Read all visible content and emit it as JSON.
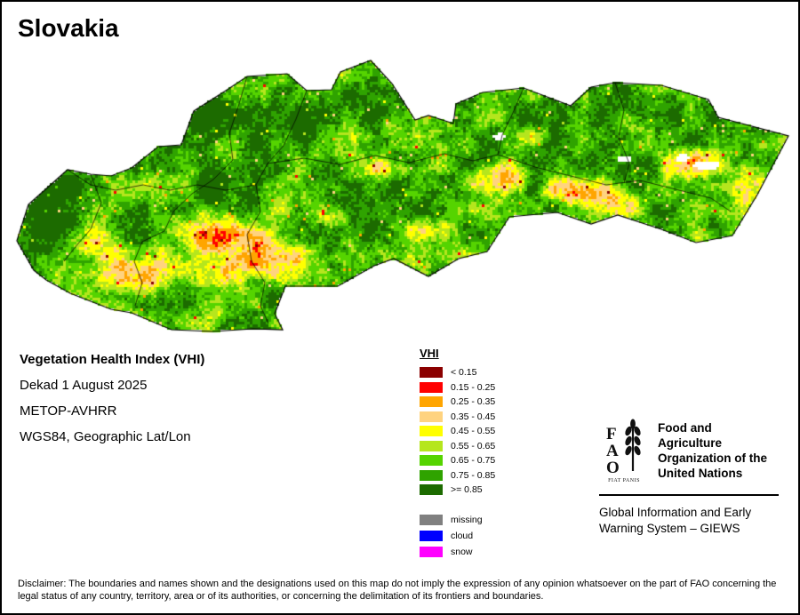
{
  "map": {
    "title": "Slovakia"
  },
  "info": {
    "index_title": "Vegetation Health Index (VHI)",
    "dekad": "Dekad 1 August 2025",
    "sensor": "METOP-AVHRR",
    "projection": "WGS84, Geographic Lat/Lon"
  },
  "legend": {
    "title": "VHI",
    "classes": [
      {
        "label": "< 0.15",
        "color": "#8B0000"
      },
      {
        "label": "0.15 - 0.25",
        "color": "#FF0000"
      },
      {
        "label": "0.25 - 0.35",
        "color": "#FFA500"
      },
      {
        "label": "0.35 - 0.45",
        "color": "#FFD37F"
      },
      {
        "label": "0.45 - 0.55",
        "color": "#FFFF00"
      },
      {
        "label": "0.55 - 0.65",
        "color": "#B5E61D"
      },
      {
        "label": "0.65 - 0.75",
        "color": "#55D400"
      },
      {
        "label": "0.75 - 0.85",
        "color": "#2FA300"
      },
      {
        "label": ">= 0.85",
        "color": "#1C6B00"
      }
    ],
    "extra": [
      {
        "label": "missing",
        "color": "#808080"
      },
      {
        "label": "cloud",
        "color": "#0000FF"
      },
      {
        "label": "snow",
        "color": "#FF00FF"
      }
    ]
  },
  "branding": {
    "logo_letters": "FAO",
    "logo_motto": "FIAT PANIS",
    "org_name": "Food and Agriculture Organization of the United Nations",
    "giews": "Global Information and Early Warning System – GIEWS"
  },
  "disclaimer": "Disclaimer: The boundaries and names shown and the designations used on this map do not imply the expression of any opinion whatsoever on the part of FAO concerning the legal status of any country, territory, area or of its authorities, or concerning the delimitation of its frontiers and boundaries."
}
